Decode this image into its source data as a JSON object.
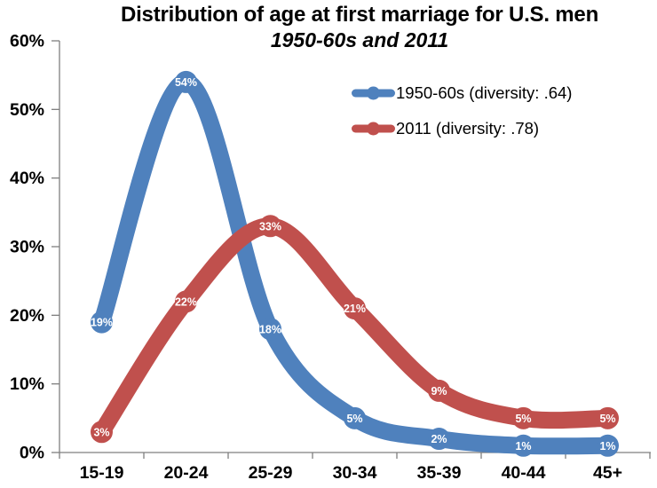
{
  "chart_data": {
    "type": "line",
    "title": "Distribution of age at first marriage for U.S. men",
    "subtitle": "1950-60s and 2011",
    "categories": [
      "15-19",
      "20-24",
      "25-29",
      "30-34",
      "35-39",
      "40-44",
      "45+"
    ],
    "series": [
      {
        "name": "1950-60s",
        "legend_label": "1950-60s (diversity: .64)",
        "color": "#4F81BD",
        "values": [
          19,
          54,
          18,
          5,
          2,
          1,
          1
        ],
        "labels": [
          "19%",
          "54%",
          "18%",
          "5%",
          "2%",
          "1%",
          "1%"
        ]
      },
      {
        "name": "2011",
        "legend_label": "2011 (diversity: .78)",
        "color": "#C0504D",
        "values": [
          3,
          22,
          33,
          21,
          9,
          5,
          5
        ],
        "labels": [
          "3%",
          "22%",
          "33%",
          "21%",
          "9%",
          "5%",
          "5%"
        ]
      }
    ],
    "yticks": [
      "0%",
      "10%",
      "20%",
      "30%",
      "40%",
      "50%",
      "60%"
    ],
    "ylim": [
      0,
      60
    ],
    "grid": false,
    "legend_position": "upper-right",
    "smooth": true,
    "line_width": 19,
    "marker_radius": 12.5,
    "axis_color": "#7F7F7F",
    "text_color": "#000000",
    "data_label_color": "#FFFFFF",
    "background": "#FFFFFF"
  }
}
